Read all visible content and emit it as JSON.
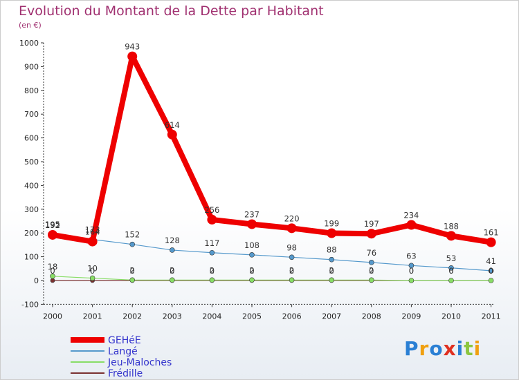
{
  "header": {
    "title": "Evolution du Montant de la Dette par Habitant",
    "subtitle": "(en €)"
  },
  "logo": {
    "text": "Proxiti",
    "letters": [
      "P",
      "r",
      "o",
      "x",
      "i",
      "t",
      "i"
    ],
    "colors": [
      "#2a7fd4",
      "#f0a010",
      "#2a7fd4",
      "#e03020",
      "#2a7fd4",
      "#8cc63f",
      "#f0a010"
    ]
  },
  "chart_data": {
    "type": "line",
    "title": "Evolution du Montant de la Dette par Habitant",
    "subtitle": "(en €)",
    "x": [
      "2000",
      "2001",
      "2002",
      "2003",
      "2004",
      "2005",
      "2006",
      "2007",
      "2008",
      "2009",
      "2010",
      "2011"
    ],
    "ylim": [
      -100,
      1000
    ],
    "yticks": [
      -100,
      0,
      100,
      200,
      300,
      400,
      500,
      600,
      700,
      800,
      900,
      1000
    ],
    "grid": false,
    "legend": "bottom-left",
    "series": [
      {
        "name": "GEHéE",
        "color": "#ee0000",
        "width": 8,
        "marker": 7,
        "values": [
          192,
          164,
          943,
          614,
          256,
          237,
          220,
          199,
          197,
          234,
          188,
          161
        ],
        "labels": [
          "192",
          "164",
          "943",
          "614",
          "256",
          "237",
          "220",
          "199",
          "197",
          "234",
          "188",
          "161"
        ]
      },
      {
        "name": "Langé",
        "color": "#5599cc",
        "width": 1.2,
        "marker": 3.5,
        "values": [
          195,
          173,
          152,
          128,
          117,
          108,
          98,
          88,
          76,
          63,
          53,
          41
        ],
        "labels": [
          "195",
          "173",
          "152",
          "128",
          "117",
          "108",
          "98",
          "88",
          "76",
          "63",
          "53",
          "41"
        ]
      },
      {
        "name": "Jeu-Maloches",
        "color": "#88dd66",
        "width": 1.2,
        "marker": 3.5,
        "values": [
          18,
          10,
          2,
          2,
          2,
          2,
          2,
          2,
          2,
          0,
          0,
          0
        ],
        "labels": [
          "18",
          "10",
          "2",
          "2",
          "2",
          "2",
          "2",
          "2",
          "2",
          "0",
          "0",
          "0"
        ]
      },
      {
        "name": "Frédille",
        "color": "#7a3030",
        "width": 1.2,
        "marker": 3,
        "values": [
          0,
          0,
          0,
          0,
          0,
          0,
          0,
          0,
          0,
          0,
          0,
          0
        ],
        "labels": [
          "0",
          "0",
          "0",
          "0",
          "0",
          "0",
          "0",
          "0",
          "0",
          "0",
          "0",
          "0"
        ]
      }
    ]
  }
}
